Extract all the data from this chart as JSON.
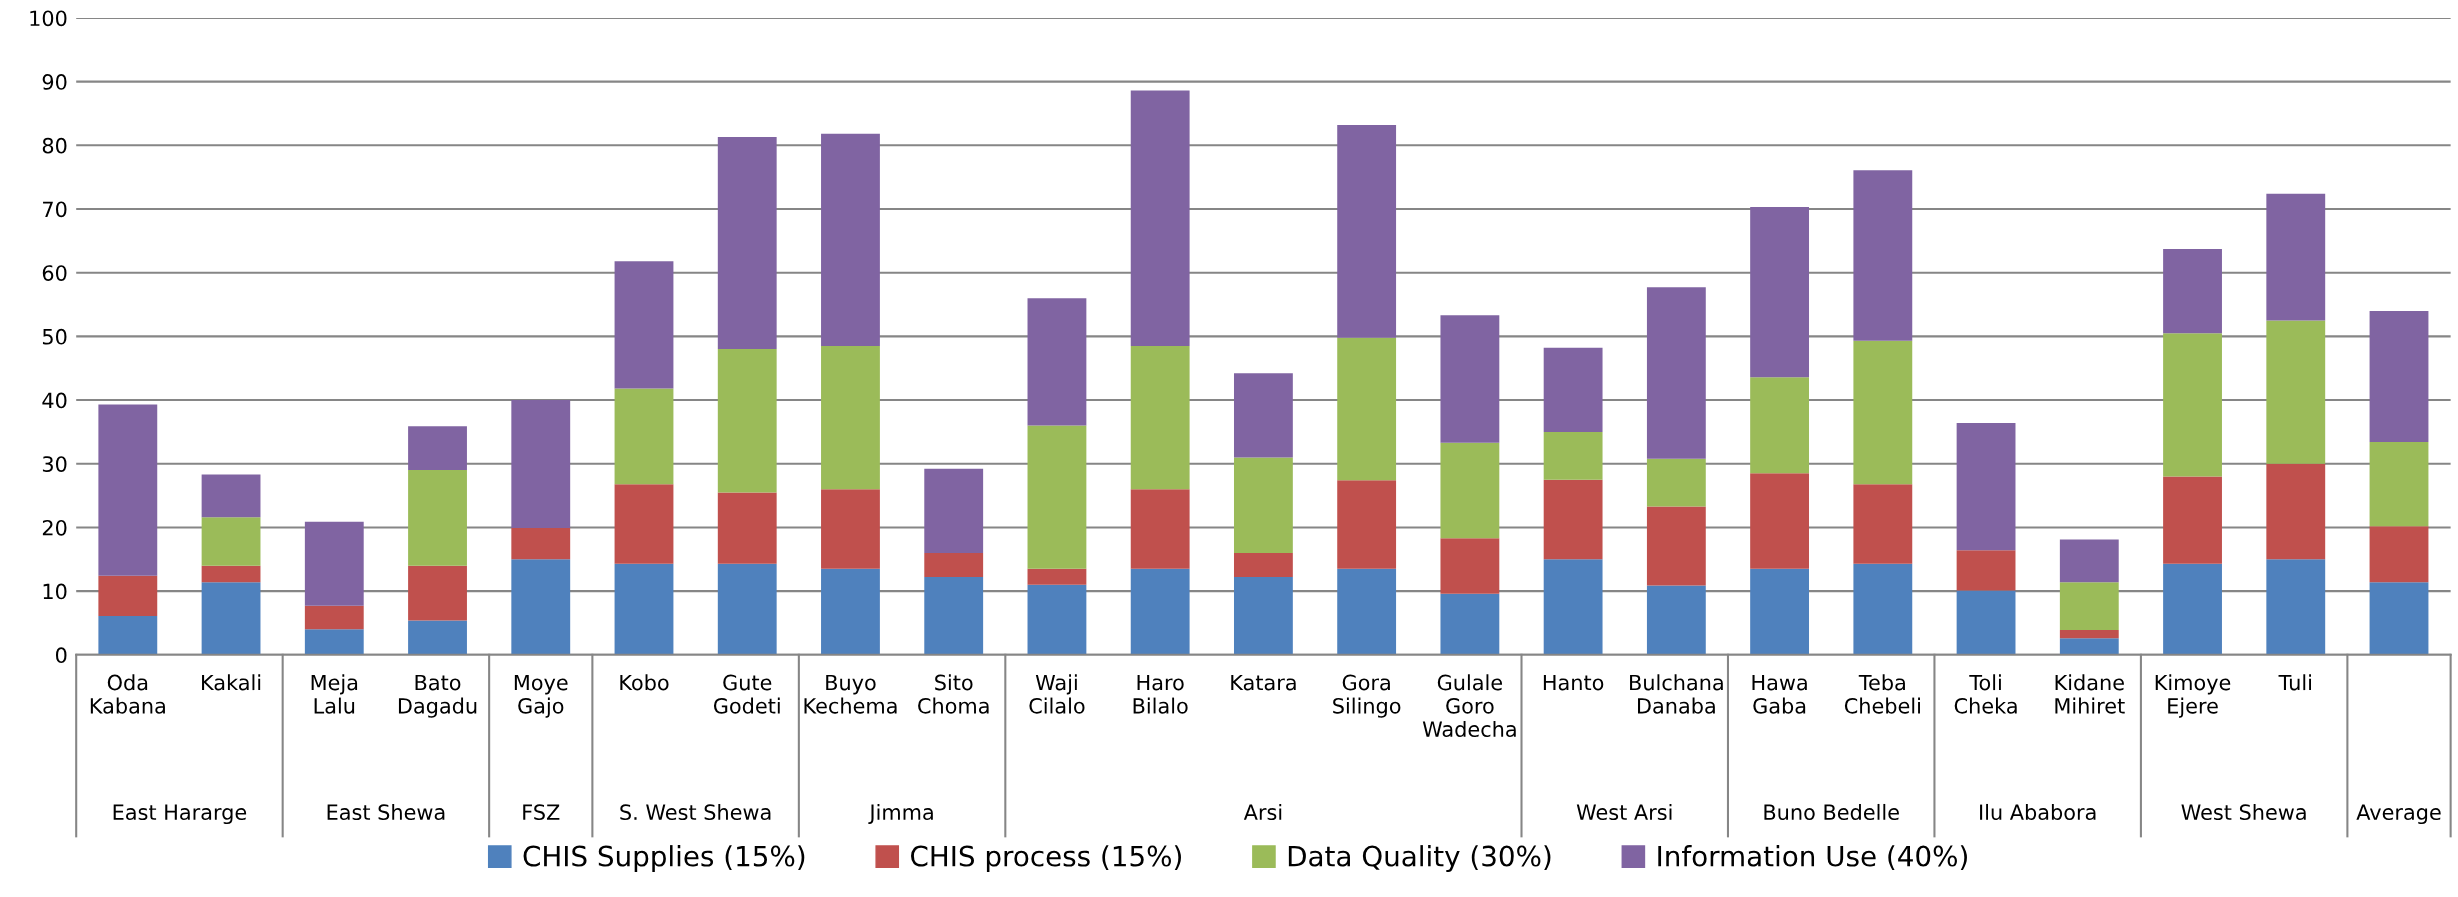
{
  "chart_data": {
    "type": "bar",
    "stacked": true,
    "categories": [
      "Oda\nKabana",
      "Kakali",
      "Meja\nLalu",
      "Bato\nDagadu",
      "Moye\nGajo",
      "Kobo",
      "Gute\nGodeti",
      "Buyo\nKechema",
      "Sito\nChoma",
      "Waji\nCilalo",
      "Haro\nBilalo",
      "Katara",
      "Gora\nSilingo",
      "Gulale\nGoro\nWadecha",
      "Hanto",
      "Bulchana\nDanaba",
      "Hawa\nGaba",
      "Teba\nChebeli",
      "Toli\nCheka",
      "Kidane\nMihiret",
      "Kimoye\nEjere",
      "Tuli",
      null
    ],
    "series": [
      {
        "name": "CHIS Supplies (15%)",
        "color": "#4f81bd",
        "values": [
          6.1,
          11.4,
          4.0,
          5.4,
          15.0,
          14.3,
          14.3,
          13.5,
          12.2,
          11.0,
          13.5,
          12.2,
          13.5,
          9.6,
          15.0,
          10.9,
          13.5,
          14.3,
          10.1,
          2.6,
          14.3,
          15.0,
          11.4
        ]
      },
      {
        "name": "CHIS process (15%)",
        "color": "#c0504d",
        "values": [
          6.3,
          2.6,
          3.7,
          8.6,
          4.9,
          12.5,
          11.2,
          12.5,
          3.8,
          2.5,
          12.5,
          3.8,
          13.9,
          8.7,
          12.5,
          12.4,
          15.0,
          12.5,
          6.3,
          1.3,
          13.7,
          15.0,
          8.8
        ]
      },
      {
        "name": "Data Quality (30%)",
        "color": "#9bbb59",
        "values": [
          0,
          7.6,
          0,
          15.0,
          0,
          15.0,
          22.5,
          22.5,
          0,
          22.5,
          22.5,
          15.0,
          22.4,
          15.0,
          7.5,
          7.5,
          15.1,
          22.5,
          0,
          7.5,
          22.5,
          22.5,
          13.2
        ]
      },
      {
        "name": "Information Use (40%)",
        "color": "#8064a2",
        "values": [
          26.9,
          6.7,
          13.2,
          6.9,
          20.1,
          20.0,
          33.3,
          33.3,
          13.2,
          20.0,
          40.1,
          13.2,
          33.4,
          20.0,
          13.2,
          26.9,
          26.7,
          26.8,
          20.0,
          6.7,
          13.2,
          19.9,
          20.6
        ]
      }
    ],
    "annotations": [
      "East Hararge",
      "East Shewa",
      "FSZ",
      "S. West Shewa",
      "Jimma",
      "Arsi",
      "West Arsi",
      "Buno Bedelle",
      "Ilu Ababora",
      "West Shewa",
      "Average"
    ],
    "ylim": [
      0,
      100
    ],
    "yticks": [
      0,
      10,
      20,
      30,
      40,
      50,
      60,
      70,
      80,
      90,
      100
    ],
    "grid": "y",
    "legend": "bottom"
  }
}
